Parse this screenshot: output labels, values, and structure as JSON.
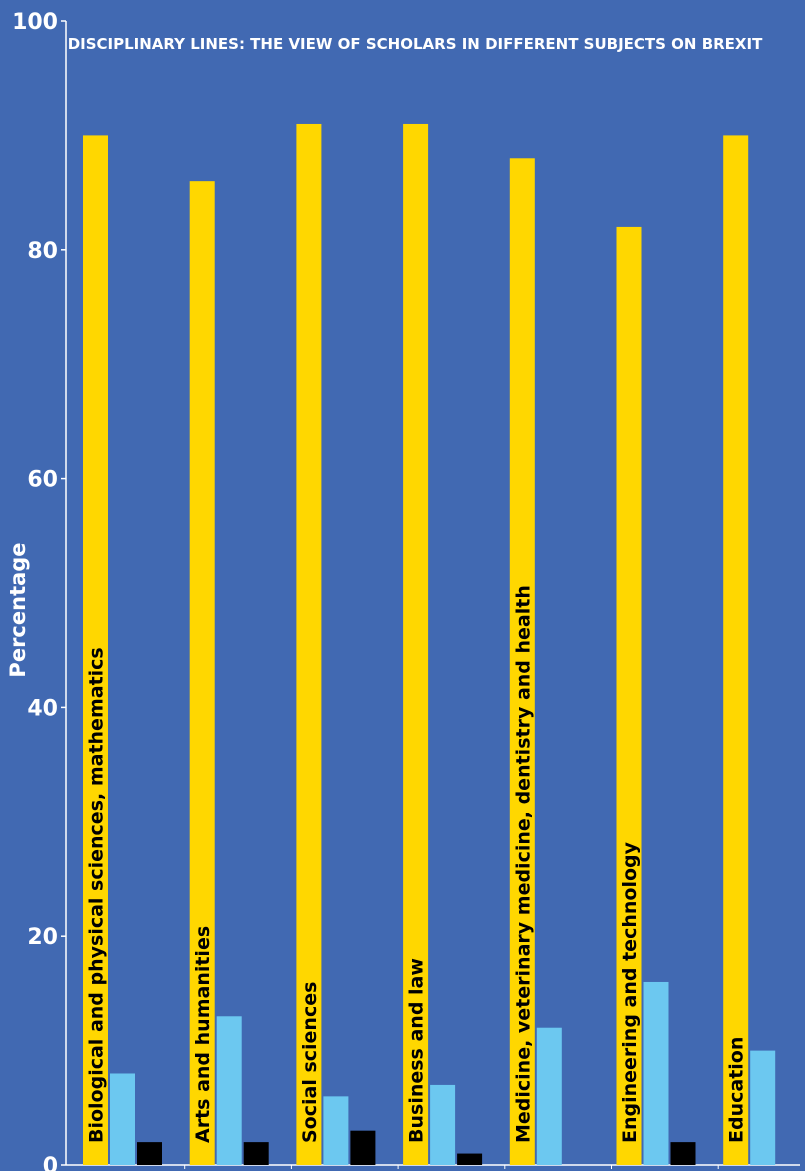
{
  "chart_data": {
    "type": "bar",
    "title": "DISCIPLINARY LINES: THE VIEW OF SCHOLARS IN DIFFERENT SUBJECTS ON BREXIT",
    "xlabel": "",
    "ylabel": "Percentage",
    "ylim": [
      0,
      100
    ],
    "yticks": [
      0,
      20,
      40,
      60,
      80,
      100
    ],
    "grid": false,
    "categories": [
      "Biological and physical sciences, mathematics",
      "Arts and humanities",
      "Social sciences",
      "Business and law",
      "Medicine, veterinary medicine, dentistry and health",
      "Engineering and technology",
      "Education"
    ],
    "series": [
      {
        "color": "#ffd700",
        "values": [
          90,
          86,
          91,
          91,
          88,
          82,
          90
        ]
      },
      {
        "color": "#6cc8f0",
        "values": [
          8,
          13,
          6,
          7,
          12,
          16,
          10
        ]
      },
      {
        "color": "#000000",
        "values": [
          2,
          2,
          3,
          1,
          0,
          2,
          0
        ]
      }
    ]
  },
  "colors": {
    "background": "#4169b2",
    "axis": "#ffffff",
    "text": "#ffffff",
    "category_label": "#000000"
  }
}
